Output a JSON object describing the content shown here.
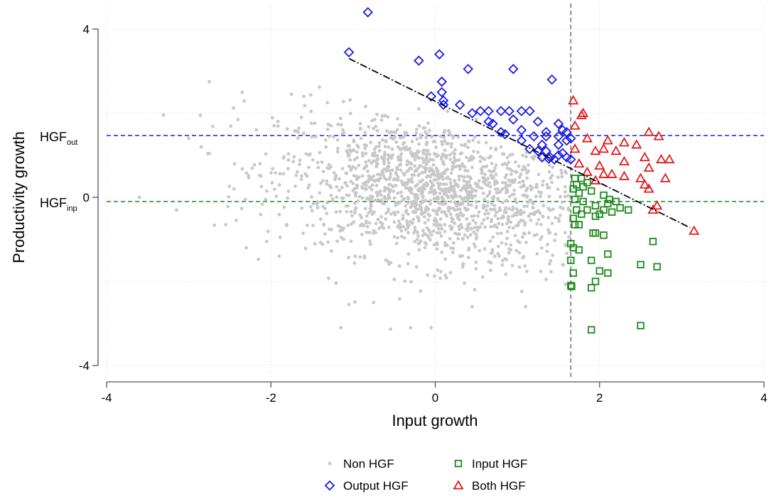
{
  "chart_data": {
    "type": "scatter",
    "xlabel": "Input growth",
    "ylabel": "Productivity growth",
    "xlim": [
      -4,
      4
    ],
    "ylim": [
      -4,
      4
    ],
    "xticks": [
      "-4",
      "-2",
      "0",
      "2",
      "4"
    ],
    "yticks": [
      "-4",
      "0",
      "4"
    ],
    "grid": true,
    "legend_position": "bottom",
    "reference_lines": {
      "vertical_x": 1.65,
      "hgf_out_y": 1.47,
      "hgf_inp_y": -0.1,
      "hgf_out_label": "HGF",
      "hgf_out_sub": "out",
      "hgf_inp_label": "HGF",
      "hgf_inp_sub": "inp"
    },
    "fit_line": {
      "x": [
        -1.05,
        3.1
      ],
      "y": [
        3.3,
        -0.72
      ]
    },
    "series": [
      {
        "name": "Non HGF",
        "marker": "dot",
        "color": "#c8c8c8",
        "note_cloud": {
          "count": 1500,
          "center": [
            0.0,
            0.15
          ],
          "spread": [
            0.95,
            0.85
          ],
          "points": [
            [
              -2.75,
              2.75
            ],
            [
              -2.35,
              2.5
            ],
            [
              -2.4,
              1.85
            ],
            [
              -3.0,
              1.4
            ],
            [
              -3.6,
              0.0
            ],
            [
              -3.15,
              -0.3
            ],
            [
              -2.55,
              -0.65
            ],
            [
              -2.3,
              -1.2
            ],
            [
              -2.05,
              -1.05
            ],
            [
              -1.9,
              -1.4
            ],
            [
              -1.05,
              -2.55
            ],
            [
              -0.75,
              -2.5
            ],
            [
              -0.3,
              -3.1
            ],
            [
              -0.05,
              -3.1
            ],
            [
              0.45,
              -2.6
            ],
            [
              1.1,
              -2.6
            ],
            [
              -1.15,
              -3.1
            ],
            [
              1.35,
              -1.95
            ],
            [
              1.55,
              -1.6
            ],
            [
              -2.45,
              0.2
            ],
            [
              -1.75,
              2.45
            ],
            [
              -1.6,
              2.4
            ],
            [
              -0.2,
              2.1
            ],
            [
              0.15,
              2.05
            ],
            [
              0.5,
              1.85
            ]
          ]
        }
      },
      {
        "name": "Output HGF",
        "marker": "diamond",
        "color": "#1a1ae6",
        "points": [
          [
            -0.82,
            4.4
          ],
          [
            -1.05,
            3.45
          ],
          [
            0.05,
            3.4
          ],
          [
            -0.2,
            3.25
          ],
          [
            0.4,
            3.05
          ],
          [
            0.95,
            3.05
          ],
          [
            1.42,
            2.8
          ],
          [
            0.08,
            2.75
          ],
          [
            0.08,
            2.5
          ],
          [
            -0.05,
            2.4
          ],
          [
            0.1,
            2.3
          ],
          [
            0.1,
            2.2
          ],
          [
            0.3,
            2.2
          ],
          [
            0.55,
            2.05
          ],
          [
            0.65,
            2.05
          ],
          [
            0.8,
            2.05
          ],
          [
            0.9,
            2.05
          ],
          [
            1.05,
            2.05
          ],
          [
            1.15,
            2.05
          ],
          [
            0.45,
            2.0
          ],
          [
            0.95,
            1.85
          ],
          [
            1.25,
            1.8
          ],
          [
            0.65,
            1.8
          ],
          [
            0.7,
            1.75
          ],
          [
            1.5,
            1.75
          ],
          [
            1.05,
            1.6
          ],
          [
            1.35,
            1.55
          ],
          [
            0.8,
            1.55
          ],
          [
            1.55,
            1.6
          ],
          [
            1.6,
            1.55
          ],
          [
            0.85,
            1.5
          ],
          [
            1.2,
            1.45
          ],
          [
            1.35,
            1.45
          ],
          [
            1.5,
            1.45
          ],
          [
            1.65,
            1.4
          ],
          [
            1.05,
            1.35
          ],
          [
            1.6,
            1.35
          ],
          [
            1.3,
            1.25
          ],
          [
            1.5,
            1.25
          ],
          [
            1.15,
            1.15
          ],
          [
            1.25,
            1.1
          ],
          [
            1.35,
            1.1
          ],
          [
            1.55,
            1.05
          ],
          [
            1.5,
            1.0
          ],
          [
            1.3,
            0.95
          ],
          [
            1.4,
            0.95
          ],
          [
            1.6,
            0.95
          ],
          [
            1.45,
            0.9
          ],
          [
            1.65,
            0.9
          ],
          [
            1.38,
            0.92
          ]
        ]
      },
      {
        "name": "Input HGF",
        "marker": "square",
        "color": "#1a8a1a",
        "points": [
          [
            1.7,
            0.45
          ],
          [
            1.78,
            0.45
          ],
          [
            1.85,
            0.35
          ],
          [
            1.72,
            0.3
          ],
          [
            1.8,
            0.25
          ],
          [
            1.68,
            0.2
          ],
          [
            1.9,
            0.15
          ],
          [
            1.75,
            0.1
          ],
          [
            2.05,
            0.05
          ],
          [
            2.12,
            -0.05
          ],
          [
            1.7,
            -0.05
          ],
          [
            1.8,
            -0.1
          ],
          [
            2.2,
            -0.1
          ],
          [
            2.1,
            -0.15
          ],
          [
            1.95,
            -0.2
          ],
          [
            2.25,
            -0.25
          ],
          [
            1.72,
            -0.3
          ],
          [
            1.85,
            -0.3
          ],
          [
            2.05,
            -0.3
          ],
          [
            2.35,
            -0.3
          ],
          [
            2.15,
            -0.35
          ],
          [
            1.78,
            -0.4
          ],
          [
            2.0,
            -0.4
          ],
          [
            1.68,
            -0.5
          ],
          [
            1.95,
            -0.45
          ],
          [
            1.75,
            -0.65
          ],
          [
            1.7,
            -0.65
          ],
          [
            1.92,
            -0.85
          ],
          [
            1.95,
            -0.85
          ],
          [
            2.05,
            -0.9
          ],
          [
            1.65,
            -1.1
          ],
          [
            1.68,
            -1.2
          ],
          [
            1.75,
            -1.25
          ],
          [
            2.1,
            -1.35
          ],
          [
            2.65,
            -1.05
          ],
          [
            1.65,
            -1.5
          ],
          [
            1.9,
            -1.5
          ],
          [
            2.5,
            -1.6
          ],
          [
            2.7,
            -1.65
          ],
          [
            1.68,
            -1.8
          ],
          [
            2.0,
            -1.75
          ],
          [
            2.1,
            -1.8
          ],
          [
            1.95,
            -2.0
          ],
          [
            1.65,
            -2.1
          ],
          [
            1.9,
            -2.15
          ],
          [
            2.5,
            -3.05
          ],
          [
            1.9,
            -3.15
          ],
          [
            1.66,
            -2.12
          ]
        ]
      },
      {
        "name": "Both HGF",
        "marker": "triangle",
        "color": "#e01a1a",
        "points": [
          [
            1.68,
            2.3
          ],
          [
            1.8,
            2.0
          ],
          [
            1.78,
            1.95
          ],
          [
            1.7,
            1.7
          ],
          [
            2.6,
            1.55
          ],
          [
            2.72,
            1.45
          ],
          [
            1.85,
            1.4
          ],
          [
            2.1,
            1.35
          ],
          [
            2.3,
            1.3
          ],
          [
            2.45,
            1.25
          ],
          [
            2.05,
            1.15
          ],
          [
            2.2,
            1.1
          ],
          [
            1.7,
            1.15
          ],
          [
            1.95,
            1.1
          ],
          [
            2.55,
            0.95
          ],
          [
            2.75,
            0.9
          ],
          [
            2.85,
            0.9
          ],
          [
            1.75,
            0.8
          ],
          [
            2.3,
            0.85
          ],
          [
            2.0,
            0.75
          ],
          [
            2.6,
            0.7
          ],
          [
            1.85,
            0.6
          ],
          [
            2.05,
            0.55
          ],
          [
            2.15,
            0.55
          ],
          [
            2.3,
            0.5
          ],
          [
            2.5,
            0.45
          ],
          [
            1.95,
            0.4
          ],
          [
            2.8,
            0.45
          ],
          [
            2.55,
            0.3
          ],
          [
            2.6,
            0.2
          ],
          [
            2.7,
            -0.2
          ],
          [
            2.65,
            -0.3
          ],
          [
            3.15,
            -0.8
          ]
        ]
      }
    ]
  },
  "legend": [
    {
      "label": "Non HGF",
      "marker": "dot",
      "color": "#c8c8c8"
    },
    {
      "label": "Input HGF",
      "marker": "square",
      "color": "#1a8a1a"
    },
    {
      "label": "Output HGF",
      "marker": "diamond",
      "color": "#1a1ae6"
    },
    {
      "label": "Both HGF",
      "marker": "triangle",
      "color": "#e01a1a"
    }
  ]
}
